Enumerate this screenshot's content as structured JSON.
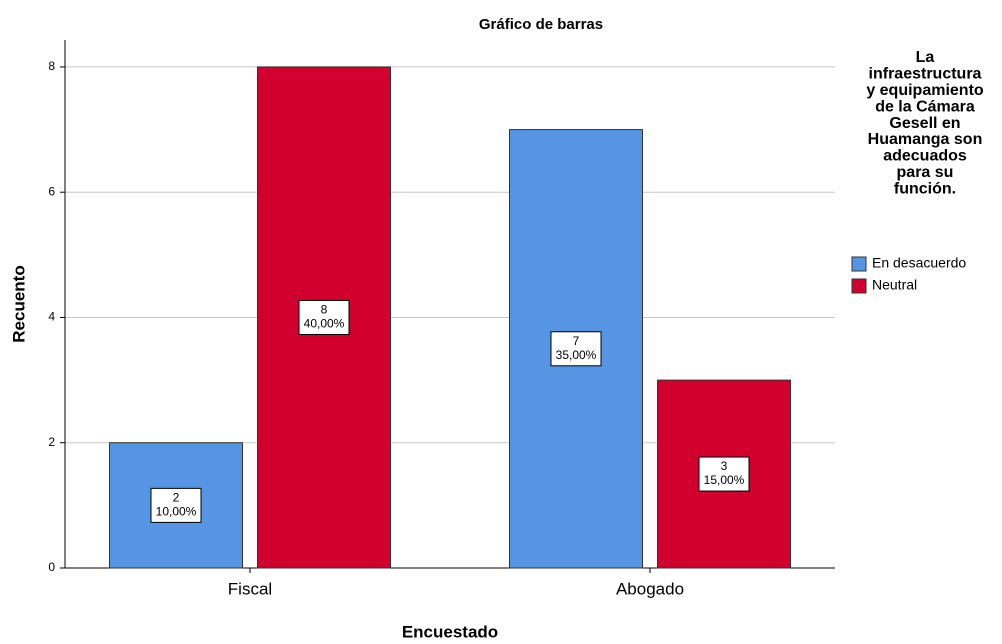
{
  "chart_data": {
    "type": "bar",
    "title": "Gráfico de barras",
    "x_label": "Encuestado",
    "y_label": "Recuento",
    "categories": [
      "Fiscal",
      "Abogado"
    ],
    "series": [
      {
        "name": "En desacuerdo",
        "color": "#5595e3",
        "values": [
          2,
          7
        ],
        "percent_labels": [
          "10,00%",
          "35,00%"
        ]
      },
      {
        "name": "Neutral",
        "color": "#d2002d",
        "values": [
          8,
          3
        ],
        "percent_labels": [
          "40,00%",
          "15,00%"
        ]
      }
    ],
    "legend_title": [
      "La",
      "infraestructura",
      "y equipamiento",
      "de la Cámara",
      "Gesell en",
      "Huamanga son",
      "adecuados",
      "para su",
      "función."
    ],
    "ylim": [
      0,
      8.43
    ],
    "yticks": [
      0,
      2,
      4,
      6,
      8
    ],
    "grid": true,
    "legend": "right"
  }
}
